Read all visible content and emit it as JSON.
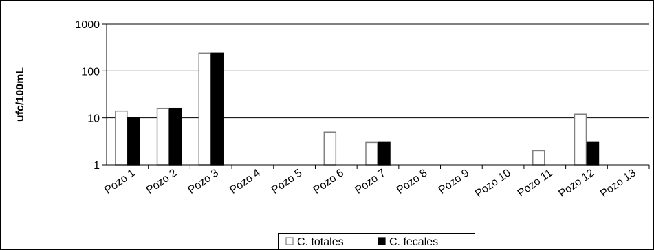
{
  "chart_data": {
    "type": "bar",
    "ylabel": "ufc/100mL",
    "xlabel": "",
    "y_scale": "log",
    "ylim": [
      1,
      1000
    ],
    "y_ticks": [
      "1",
      "10",
      "100",
      "1000"
    ],
    "grid": true,
    "legend_position": "bottom",
    "categories": [
      "Pozo 1",
      "Pozo 2",
      "Pozo 3",
      "Pozo 4",
      "Pozo 5",
      "Pozo 6",
      "Pozo 7",
      "Pozo 8",
      "Pozo 9",
      "Pozo 10",
      "Pozo 11",
      "Pozo 12",
      "Pozo 13"
    ],
    "series": [
      {
        "name": "C. totales",
        "color": "#ffffff",
        "stroke": "#808080",
        "values": [
          14,
          16,
          240,
          1,
          1,
          5,
          3,
          1,
          1,
          1,
          2,
          12,
          1
        ]
      },
      {
        "name": "C. fecales",
        "color": "#000000",
        "stroke": "#000000",
        "values": [
          10,
          16,
          240,
          1,
          1,
          1,
          3,
          1,
          1,
          1,
          1,
          3,
          1
        ]
      }
    ]
  }
}
